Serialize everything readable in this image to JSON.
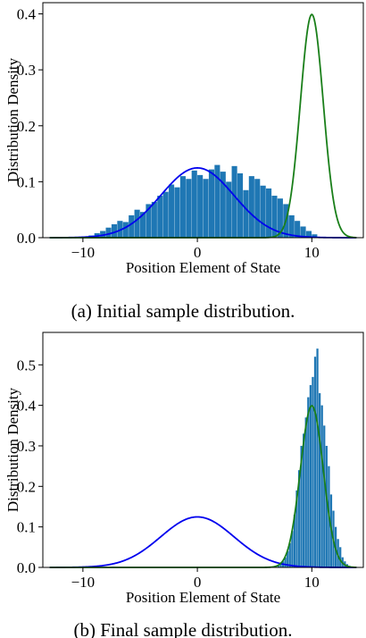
{
  "chart_data": [
    {
      "type": "bar",
      "caption": "(a) Initial sample distribution.",
      "xlabel": "Position Element of State",
      "ylabel": "Distribution Density",
      "xlim": [
        -13.5,
        14.5
      ],
      "ylim": [
        0,
        0.42
      ],
      "xticks": [
        -10,
        0,
        10
      ],
      "yticks": [
        0.0,
        0.1,
        0.2,
        0.3,
        0.4
      ],
      "histogram": {
        "color": "#1f77b4",
        "bin_width": 0.5,
        "bin_start": -9.5,
        "values": [
          0.004,
          0.008,
          0.012,
          0.018,
          0.024,
          0.03,
          0.028,
          0.04,
          0.05,
          0.046,
          0.06,
          0.064,
          0.075,
          0.082,
          0.095,
          0.09,
          0.11,
          0.105,
          0.12,
          0.112,
          0.105,
          0.122,
          0.13,
          0.118,
          0.1,
          0.128,
          0.115,
          0.085,
          0.11,
          0.105,
          0.093,
          0.088,
          0.075,
          0.07,
          0.06,
          0.04,
          0.03,
          0.02,
          0.012,
          0.006
        ]
      },
      "curves": [
        {
          "color": "#0000ee",
          "mean": 0,
          "std": 3.2
        },
        {
          "color": "#1a7f1a",
          "mean": 10,
          "std": 1.0
        }
      ]
    },
    {
      "type": "bar",
      "caption": "(b) Final sample distribution.",
      "xlabel": "Position Element of State",
      "ylabel": "Distribution Density",
      "xlim": [
        -13.5,
        14.5
      ],
      "ylim": [
        0,
        0.58
      ],
      "xticks": [
        -10,
        0,
        10
      ],
      "yticks": [
        0.0,
        0.1,
        0.2,
        0.3,
        0.4,
        0.5
      ],
      "histogram": {
        "color": "#1f77b4",
        "bin_width": 0.2,
        "bin_start": 7.0,
        "values": [
          0.004,
          0.008,
          0.015,
          0.025,
          0.04,
          0.06,
          0.09,
          0.13,
          0.19,
          0.24,
          0.3,
          0.33,
          0.37,
          0.42,
          0.45,
          0.47,
          0.52,
          0.54,
          0.43,
          0.4,
          0.35,
          0.3,
          0.25,
          0.18,
          0.14,
          0.1,
          0.07,
          0.05,
          0.025,
          0.015,
          0.008,
          0.004
        ]
      },
      "curves": [
        {
          "color": "#0000ee",
          "mean": 0,
          "std": 3.2
        },
        {
          "color": "#1a7f1a",
          "mean": 10,
          "std": 1.0
        }
      ]
    }
  ]
}
